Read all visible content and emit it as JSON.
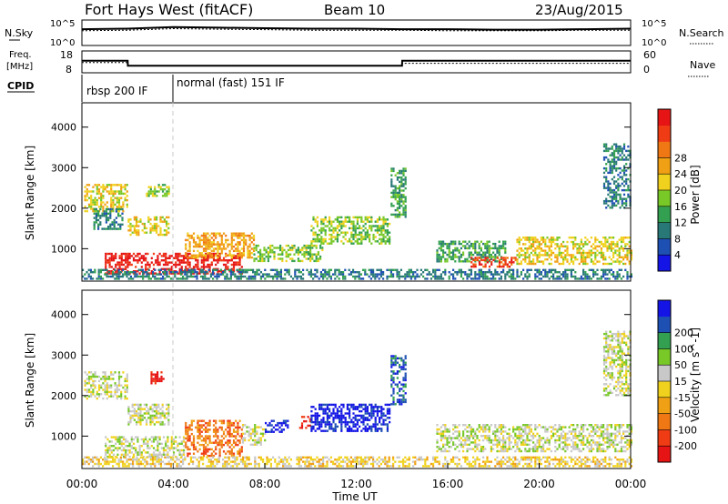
{
  "header": {
    "station": "Fort Hays West (fitACF)",
    "beam": "Beam 10",
    "date": "23/Aug/2015"
  },
  "top_panels": {
    "nsky_label": "N.Sky",
    "nsearch_label": "N.Search",
    "freq_label_line1": "Freq.",
    "freq_label_line2": "[MHz]",
    "nave_label": "Nave",
    "cpid_label": "CPID",
    "nsky_ticks": [
      "10^5",
      "10^0"
    ],
    "nsearch_ticks": [
      "10^5",
      "10^0"
    ],
    "freq_ticks": [
      "18",
      "8"
    ],
    "nave_ticks": [
      "60",
      "0"
    ],
    "cpid_segments": [
      {
        "label": "rbsp 200 IF",
        "start_hr": 0
      },
      {
        "label": "normal (fast) 151 IF",
        "start_hr": 4
      }
    ]
  },
  "chart_data": [
    {
      "type": "line",
      "title": "N.Sky / N.Search",
      "x": [
        0,
        2,
        4,
        6,
        8,
        10,
        12,
        14,
        16,
        18,
        20,
        22,
        24
      ],
      "series": [
        {
          "name": "N.Sky",
          "values": [
            3.2,
            3.3,
            3.6,
            3.5,
            3.4,
            3.3,
            3.3,
            3.2,
            3.2,
            3.1,
            3.1,
            3.2,
            3.3
          ]
        },
        {
          "name": "N.Search",
          "values": [
            2.9,
            3.0,
            3.3,
            3.2,
            3.1,
            3.0,
            3.0,
            3.0,
            2.9,
            2.9,
            2.9,
            3.0,
            3.0
          ]
        }
      ],
      "ylim": [
        0,
        5
      ]
    },
    {
      "type": "line",
      "title": "Freq. / Nave",
      "x": [
        0,
        2,
        2.01,
        14,
        14.01,
        24
      ],
      "series": [
        {
          "name": "Freq. [MHz]",
          "values": [
            13.5,
            13.5,
            11.2,
            11.2,
            13.5,
            13.5
          ]
        },
        {
          "name": "Nave",
          "values": [
            28,
            28,
            20,
            20,
            26,
            26
          ]
        }
      ],
      "ylim": [
        8,
        18
      ]
    },
    {
      "type": "heatmap",
      "title": "Power [dB]",
      "xlabel": "",
      "ylabel": "Slant Range [km]",
      "xlim": [
        0,
        24
      ],
      "ylim": [
        200,
        4600
      ],
      "yticks": [
        1000,
        2000,
        3000,
        4000
      ],
      "colorbar": {
        "label": "Power [dB]",
        "ticks": [
          4,
          8,
          12,
          16,
          20,
          24,
          28
        ],
        "colors": [
          "#1414e6",
          "#1e50b4",
          "#287878",
          "#32a050",
          "#78c828",
          "#f0d21e",
          "#f0a014",
          "#f07814",
          "#f03c14",
          "#e61414"
        ]
      },
      "regions": [
        {
          "t0": 0.1,
          "t1": 2.0,
          "r0": 1900,
          "r1": 2600,
          "level": 5
        },
        {
          "t0": 0.5,
          "t1": 1.8,
          "r0": 1500,
          "r1": 2000,
          "level": 2
        },
        {
          "t0": 2.0,
          "t1": 3.8,
          "r0": 1350,
          "r1": 1800,
          "level": 5
        },
        {
          "t0": 2.8,
          "t1": 3.8,
          "r0": 2300,
          "r1": 2600,
          "level": 4
        },
        {
          "t0": 1.0,
          "t1": 7.0,
          "r0": 400,
          "r1": 900,
          "level": 9
        },
        {
          "t0": 4.5,
          "t1": 7.5,
          "r0": 800,
          "r1": 1400,
          "level": 6
        },
        {
          "t0": 7.5,
          "t1": 10.5,
          "r0": 700,
          "r1": 1100,
          "level": 4
        },
        {
          "t0": 10.0,
          "t1": 13.5,
          "r0": 1100,
          "r1": 1800,
          "level": 4
        },
        {
          "t0": 13.5,
          "t1": 14.2,
          "r0": 1800,
          "r1": 3000,
          "level": 3
        },
        {
          "t0": 15.5,
          "t1": 18.5,
          "r0": 700,
          "r1": 1200,
          "level": 3
        },
        {
          "t0": 17.0,
          "t1": 19.0,
          "r0": 550,
          "r1": 800,
          "level": 8
        },
        {
          "t0": 19.0,
          "t1": 24.0,
          "r0": 600,
          "r1": 1300,
          "level": 5
        },
        {
          "t0": 22.8,
          "t1": 24.0,
          "r0": 2000,
          "r1": 3600,
          "level": 2
        },
        {
          "t0": 0.0,
          "t1": 24.0,
          "r0": 250,
          "r1": 500,
          "level": 2
        }
      ]
    },
    {
      "type": "heatmap",
      "title": "Velocity [m s^-1]",
      "xlabel": "Time UT",
      "ylabel": "Slant Range [km]",
      "xlim": [
        0,
        24
      ],
      "ylim": [
        200,
        4600
      ],
      "xticks": [
        "00:00",
        "04:00",
        "08:00",
        "12:00",
        "16:00",
        "20:00",
        "00:00"
      ],
      "yticks": [
        1000,
        2000,
        3000,
        4000
      ],
      "colorbar": {
        "label": "Velocity [m s^-1]",
        "ticks": [
          -200,
          -100,
          -50,
          -15,
          15,
          50,
          100,
          200
        ],
        "colors": [
          "#e61414",
          "#f03c14",
          "#f07814",
          "#f0a014",
          "#f0d21e",
          "#c8c8c8",
          "#78c828",
          "#32a050",
          "#1e50b4",
          "#1414e6"
        ]
      },
      "regions": [
        {
          "t0": 0.1,
          "t1": 2.0,
          "r0": 1900,
          "r1": 2600,
          "level": 5
        },
        {
          "t0": 2.0,
          "t1": 3.8,
          "r0": 1300,
          "r1": 1800,
          "level": 5
        },
        {
          "t0": 3.0,
          "t1": 3.6,
          "r0": 2300,
          "r1": 2600,
          "level": 0
        },
        {
          "t0": 1.0,
          "t1": 4.5,
          "r0": 500,
          "r1": 1000,
          "level": 5
        },
        {
          "t0": 4.5,
          "t1": 7.0,
          "r0": 500,
          "r1": 1400,
          "level": 2
        },
        {
          "t0": 7.0,
          "t1": 8.0,
          "r0": 800,
          "r1": 1300,
          "level": 5
        },
        {
          "t0": 8.0,
          "t1": 9.0,
          "r0": 1100,
          "r1": 1400,
          "level": 9
        },
        {
          "t0": 9.5,
          "t1": 10.0,
          "r0": 1200,
          "r1": 1500,
          "level": 0
        },
        {
          "t0": 10.0,
          "t1": 13.5,
          "r0": 1100,
          "r1": 1800,
          "level": 9
        },
        {
          "t0": 13.5,
          "t1": 14.2,
          "r0": 1800,
          "r1": 3000,
          "level": 8
        },
        {
          "t0": 15.5,
          "t1": 24.0,
          "r0": 600,
          "r1": 1300,
          "level": 5
        },
        {
          "t0": 22.8,
          "t1": 24.0,
          "r0": 2000,
          "r1": 3600,
          "level": 5
        },
        {
          "t0": 0.0,
          "t1": 24.0,
          "r0": 250,
          "r1": 500,
          "level": 4
        }
      ]
    }
  ]
}
